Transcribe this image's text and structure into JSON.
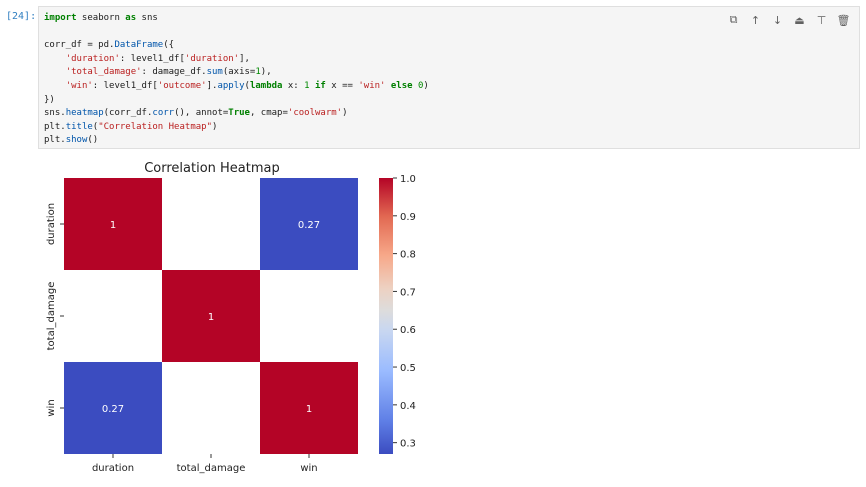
{
  "cell": {
    "prompt": "[24]:",
    "code_lines": [
      [
        {
          "t": "import",
          "c": "kw"
        },
        {
          "t": " seaborn "
        },
        {
          "t": "as",
          "c": "kw"
        },
        {
          "t": " sns"
        }
      ],
      [],
      [
        {
          "t": "corr_df = pd."
        },
        {
          "t": "DataFrame",
          "c": "fn"
        },
        {
          "t": "({"
        }
      ],
      [
        {
          "t": "    "
        },
        {
          "t": "'duration'",
          "c": "st"
        },
        {
          "t": ": level1_df["
        },
        {
          "t": "'duration'",
          "c": "st"
        },
        {
          "t": "],"
        }
      ],
      [
        {
          "t": "    "
        },
        {
          "t": "'total_damage'",
          "c": "st"
        },
        {
          "t": ": damage_df."
        },
        {
          "t": "sum",
          "c": "fn"
        },
        {
          "t": "(axis="
        },
        {
          "t": "1",
          "c": "nm"
        },
        {
          "t": "),"
        }
      ],
      [
        {
          "t": "    "
        },
        {
          "t": "'win'",
          "c": "st"
        },
        {
          "t": ": level1_df["
        },
        {
          "t": "'outcome'",
          "c": "st"
        },
        {
          "t": "]."
        },
        {
          "t": "apply",
          "c": "fn"
        },
        {
          "t": "("
        },
        {
          "t": "lambda",
          "c": "kw"
        },
        {
          "t": " x: "
        },
        {
          "t": "1",
          "c": "nm"
        },
        {
          "t": " "
        },
        {
          "t": "if",
          "c": "kw"
        },
        {
          "t": " x == "
        },
        {
          "t": "'win'",
          "c": "st"
        },
        {
          "t": " "
        },
        {
          "t": "else",
          "c": "kw"
        },
        {
          "t": " "
        },
        {
          "t": "0",
          "c": "nm"
        },
        {
          "t": ")"
        }
      ],
      [
        {
          "t": "})"
        }
      ],
      [
        {
          "t": "sns."
        },
        {
          "t": "heatmap",
          "c": "fn"
        },
        {
          "t": "(corr_df."
        },
        {
          "t": "corr",
          "c": "fn"
        },
        {
          "t": "(), annot="
        },
        {
          "t": "True",
          "c": "kw"
        },
        {
          "t": ", cmap="
        },
        {
          "t": "'coolwarm'",
          "c": "st"
        },
        {
          "t": ")"
        }
      ],
      [
        {
          "t": "plt."
        },
        {
          "t": "title",
          "c": "fn"
        },
        {
          "t": "("
        },
        {
          "t": "\"Correlation Heatmap\"",
          "c": "st"
        },
        {
          "t": ")"
        }
      ],
      [
        {
          "t": "plt."
        },
        {
          "t": "show",
          "c": "fn"
        },
        {
          "t": "()"
        }
      ]
    ],
    "toolbar": [
      {
        "name": "duplicate-cell-icon",
        "glyph": "⧉"
      },
      {
        "name": "move-up-icon",
        "glyph": "↑"
      },
      {
        "name": "move-down-icon",
        "glyph": "↓"
      },
      {
        "name": "insert-above-icon",
        "glyph": "⏏"
      },
      {
        "name": "insert-below-icon",
        "glyph": "⊤"
      },
      {
        "name": "delete-cell-icon",
        "glyph": "🗑"
      }
    ]
  },
  "chart_data": {
    "type": "heatmap",
    "title": "Correlation Heatmap",
    "rows": [
      "duration",
      "total_damage",
      "win"
    ],
    "columns": [
      "duration",
      "total_damage",
      "win"
    ],
    "values": [
      [
        1,
        null,
        0.27
      ],
      [
        null,
        1,
        null
      ],
      [
        0.27,
        null,
        1
      ]
    ],
    "annotations": [
      [
        "1",
        "",
        "0.27"
      ],
      [
        "",
        "1",
        ""
      ],
      [
        "0.27",
        "",
        "1"
      ]
    ],
    "colormap": "coolwarm",
    "color_low": "#3b4cc0",
    "color_high": "#b40426",
    "colorbar": {
      "min": 0.27,
      "max": 1.0,
      "ticks": [
        1.0,
        0.9,
        0.8,
        0.7,
        0.6,
        0.5,
        0.4,
        0.3
      ],
      "tick_labels": [
        "1.0",
        "0.9",
        "0.8",
        "0.7",
        "0.6",
        "0.5",
        "0.4",
        "0.3"
      ]
    }
  }
}
